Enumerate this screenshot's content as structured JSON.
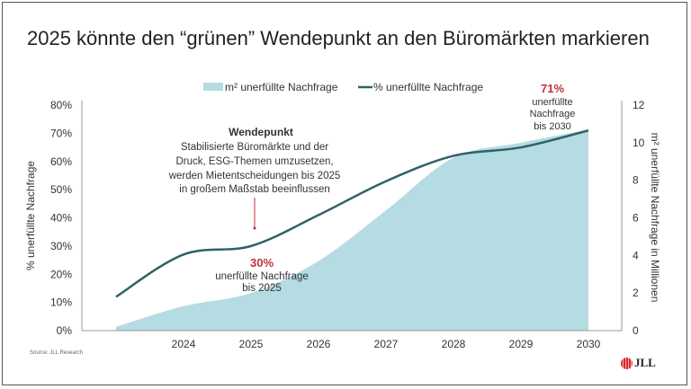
{
  "title": "2025 könnte den “grünen” Wendepunkt an den Büromärkten markieren",
  "source": "Source: JLL Research",
  "logo": "JLL",
  "colors": {
    "area": "#b5dbe3",
    "line": "#2f6266",
    "highlight": "#c0303a",
    "axis": "#999999"
  },
  "chart_data": {
    "type": "line+area",
    "x": [
      2023,
      2024,
      2025,
      2026,
      2027,
      2028,
      2029,
      2030
    ],
    "x_tick_labels": [
      "2024",
      "2025",
      "2026",
      "2027",
      "2028",
      "2029",
      "2030"
    ],
    "series": [
      {
        "name": "m² unerfüllte Nachfrage",
        "type": "area",
        "axis": "right",
        "values": [
          0.2,
          1.3,
          2.0,
          3.7,
          6.4,
          9.2,
          10.0,
          10.7
        ]
      },
      {
        "name": "% unerfüllte Nachfrage",
        "type": "line",
        "axis": "left",
        "values": [
          12,
          27,
          30,
          41,
          53,
          62,
          65,
          71
        ]
      }
    ],
    "ylim_left": [
      0,
      80
    ],
    "y_left_ticks": [
      "0%",
      "10%",
      "20%",
      "30%",
      "40%",
      "50%",
      "60%",
      "70%",
      "80%"
    ],
    "ylabel_left": "% unerfüllte Nachfrage",
    "ylim_right": [
      0,
      12
    ],
    "y_right_ticks": [
      "0",
      "2",
      "4",
      "6",
      "8",
      "10",
      "12"
    ],
    "ylabel_right": "m² unerfüllte Nachfrage in Millionen",
    "legend_position": "top",
    "annotations": {
      "wendepunkt": {
        "title": "Wendepunkt",
        "lines": [
          "Stabilisierte Büromärkte und der",
          "Druck, ESG-Themen umzusetzen,",
          "werden Mietentscheidungen bis 2025",
          "in großem Maßstab beeinflussen"
        ]
      },
      "a2025": {
        "value": "30%",
        "lines": [
          "unerfüllte Nachfrage",
          "bis 2025"
        ]
      },
      "a2030": {
        "value": "71%",
        "lines": [
          "unerfüllte",
          "Nachfrage",
          "bis 2030"
        ]
      }
    }
  }
}
